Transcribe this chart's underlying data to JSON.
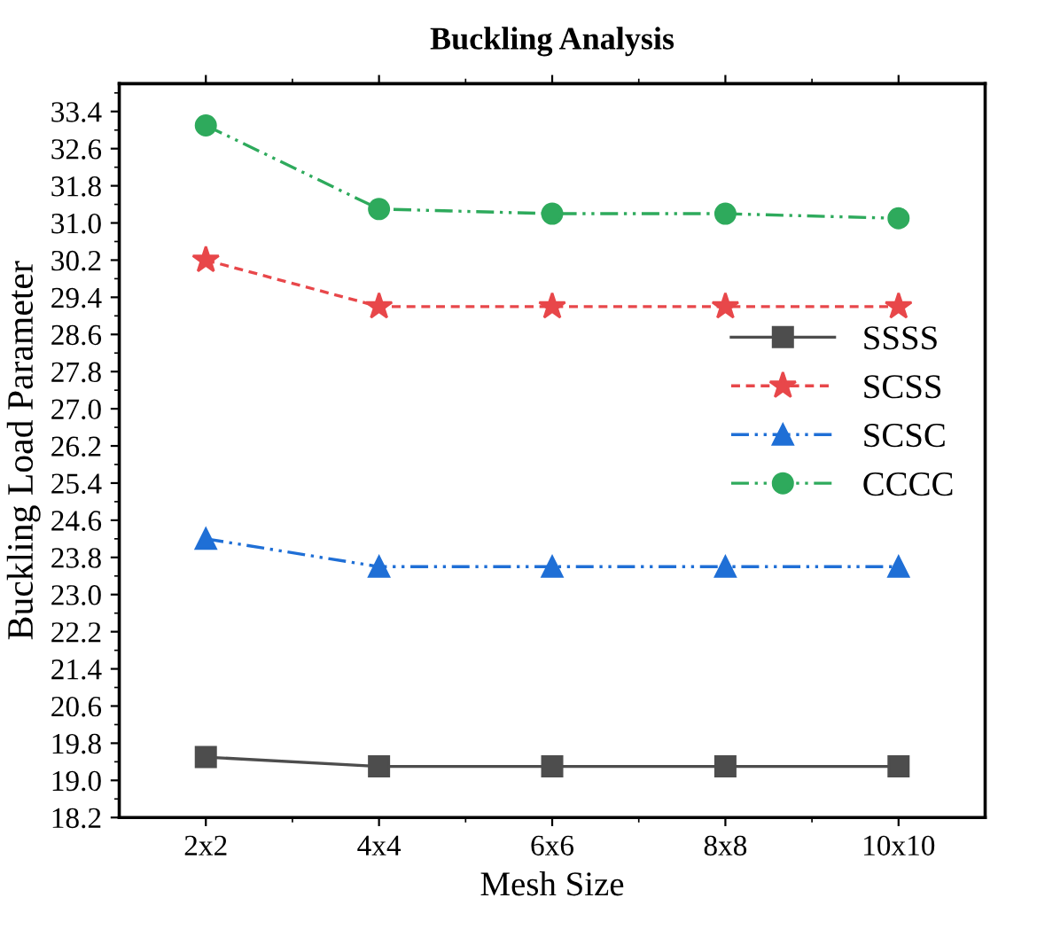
{
  "chart_data": {
    "type": "line",
    "title": "Buckling Analysis",
    "xlabel": "Mesh Size",
    "ylabel": "Buckling Load Parameter",
    "categories": [
      "2x2",
      "4x4",
      "6x6",
      "8x8",
      "10x10"
    ],
    "series": [
      {
        "name": "SSSS",
        "color": "#4d4d4d",
        "marker": "square",
        "line_style": "solid",
        "values": [
          19.5,
          19.3,
          19.3,
          19.3,
          19.3
        ]
      },
      {
        "name": "SCSS",
        "color": "#e8474a",
        "marker": "star",
        "line_style": "dashed",
        "values": [
          30.2,
          29.2,
          29.2,
          29.2,
          29.2
        ]
      },
      {
        "name": "SCSC",
        "color": "#1f6fd6",
        "marker": "triangle",
        "line_style": "dashdotdot",
        "values": [
          24.2,
          23.6,
          23.6,
          23.6,
          23.6
        ]
      },
      {
        "name": "CCCC",
        "color": "#2eaa5c",
        "marker": "circle",
        "line_style": "dashdotdot",
        "values": [
          33.1,
          31.3,
          31.2,
          31.2,
          31.1
        ]
      }
    ],
    "ylim": [
      18.2,
      34.0
    ],
    "yticks": [
      18.2,
      {
        "value": 19,
        "label": "19.0"
      },
      19.8,
      20.6,
      21.4,
      22.2,
      {
        "value": 23,
        "label": "23.0"
      },
      23.8,
      24.6,
      25.4,
      26.2,
      {
        "value": 27,
        "label": "27.0"
      },
      27.8,
      28.6,
      29.4,
      30.2,
      {
        "value": 31,
        "label": "31.0"
      },
      31.8,
      32.6,
      33.4
    ],
    "grid": false,
    "legend": "right"
  }
}
